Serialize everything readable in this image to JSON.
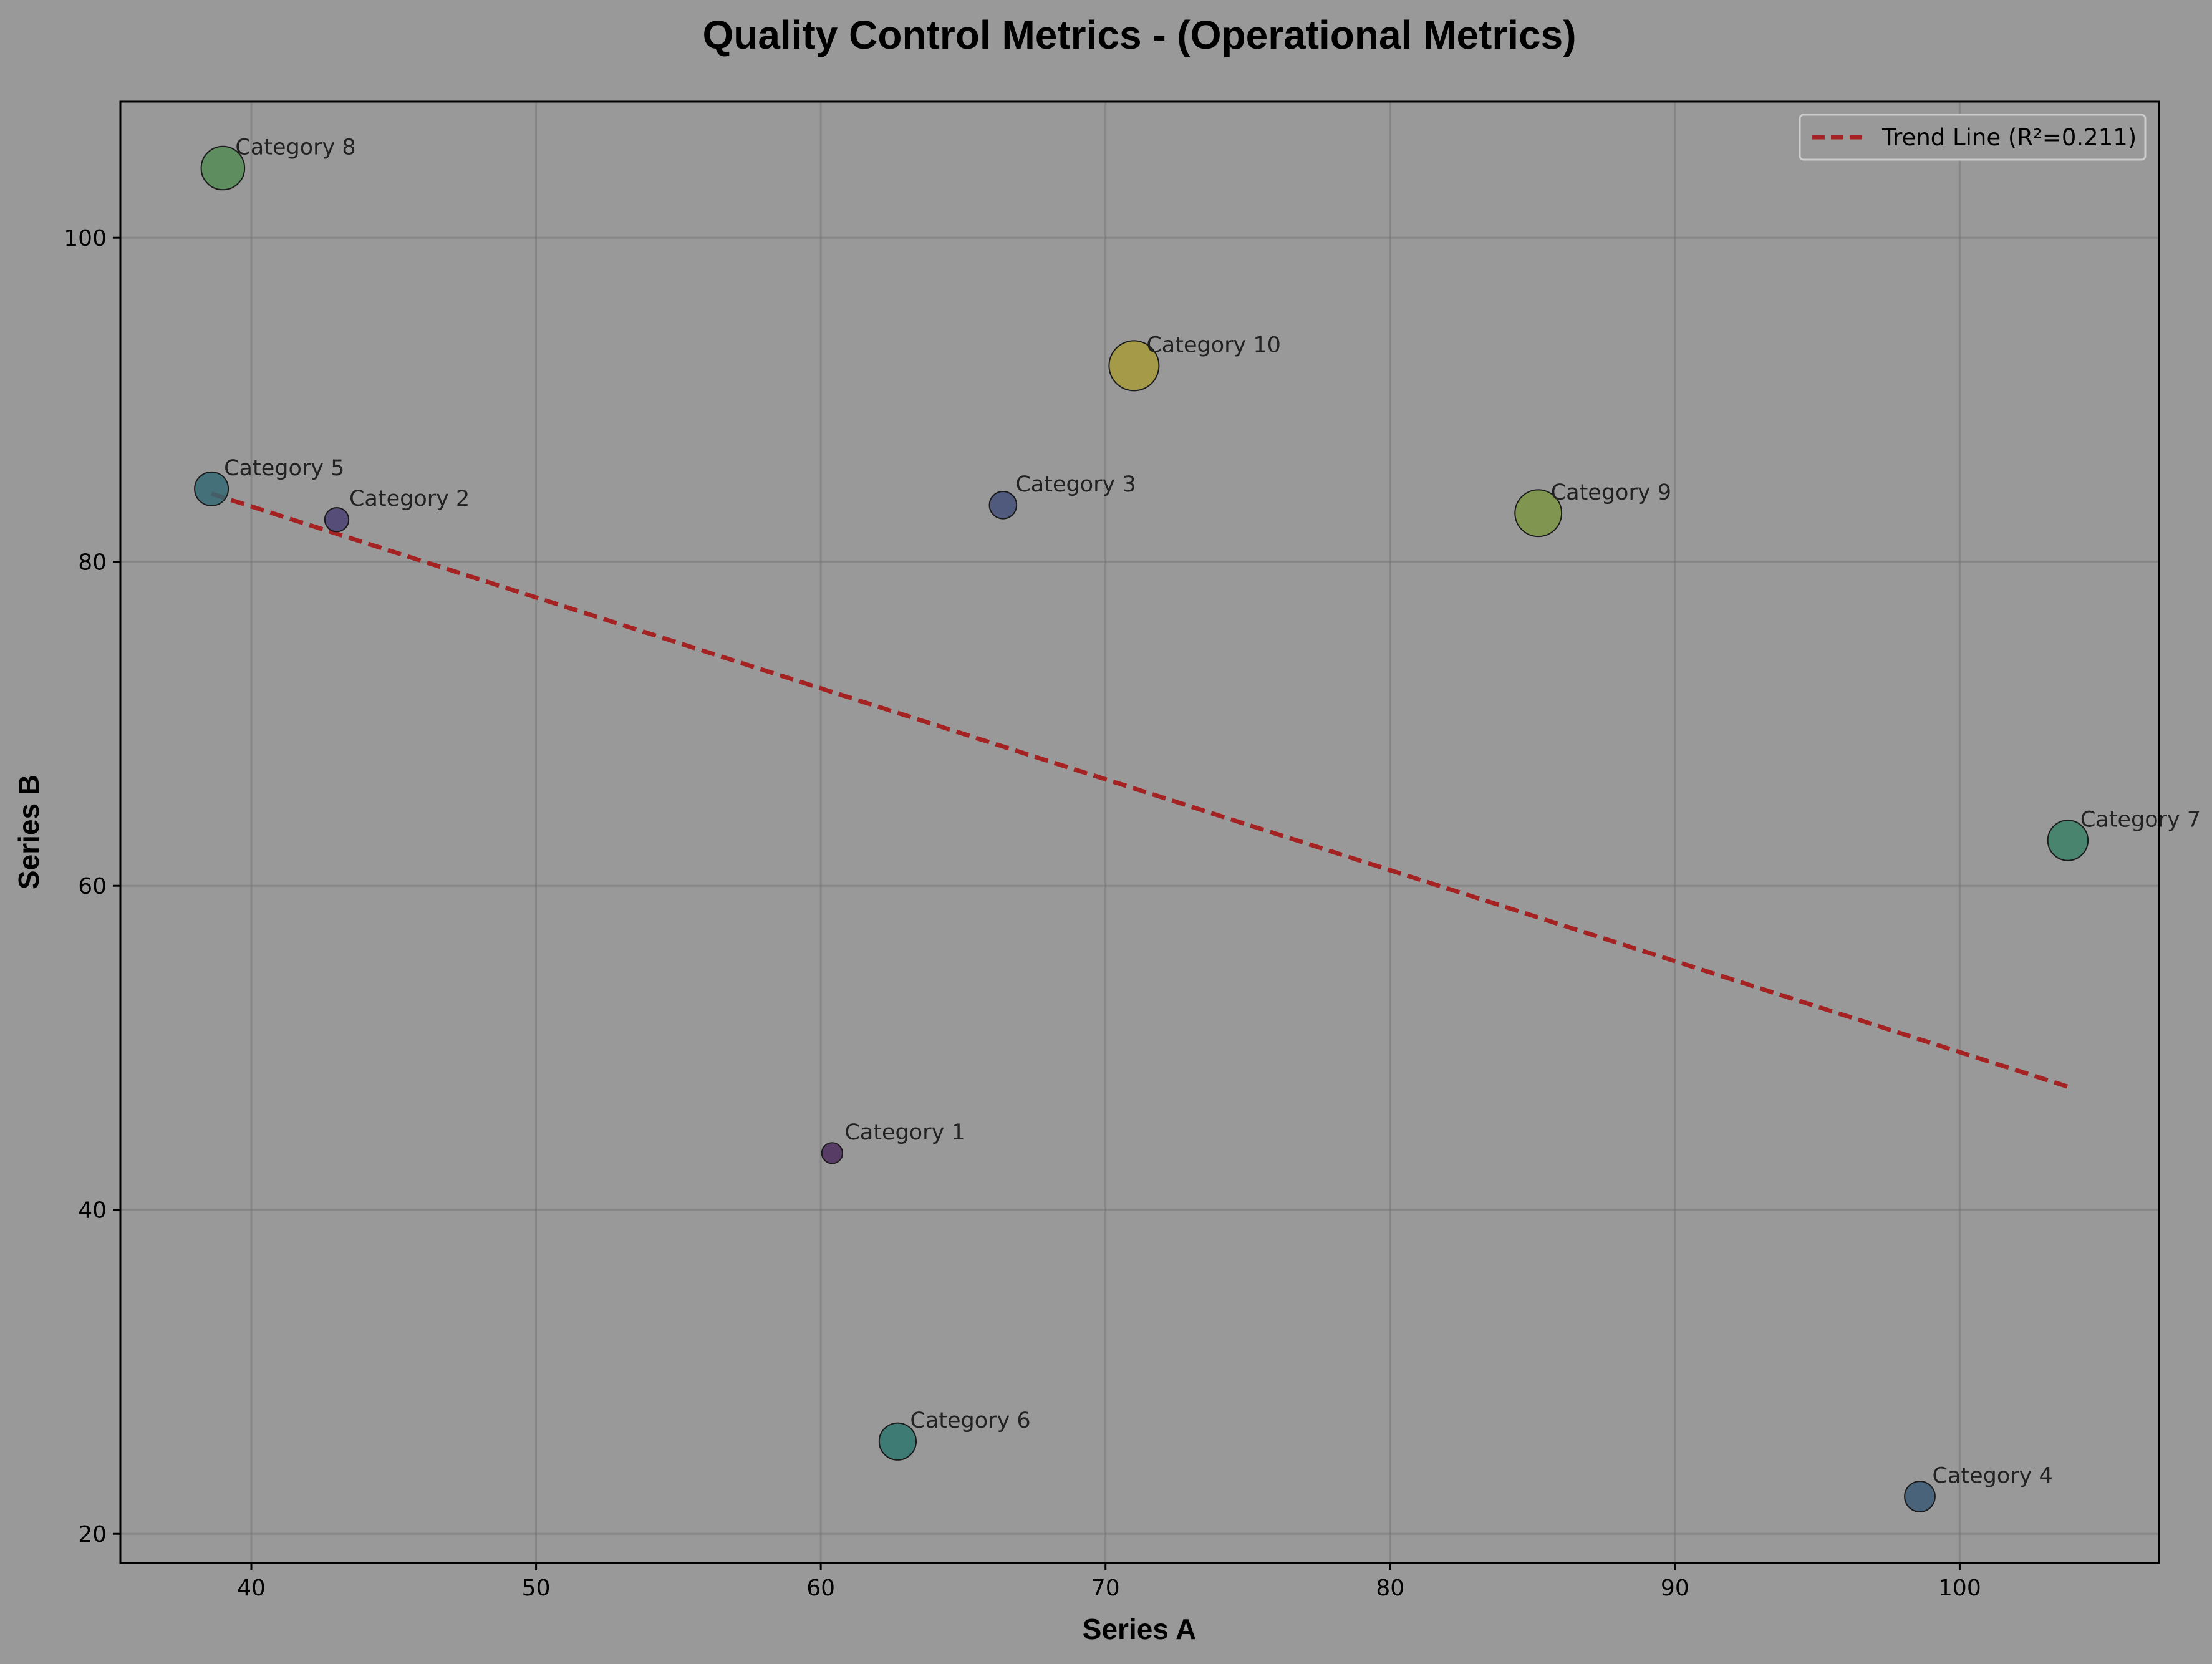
{
  "chart_data": {
    "type": "scatter",
    "title": "Quality Control Metrics - (Operational Metrics)",
    "xlabel": "Series A",
    "ylabel": "Series B",
    "xlim": [
      35.4,
      107.0
    ],
    "ylim": [
      18.2,
      108.4
    ],
    "xticks": [
      40,
      50,
      60,
      70,
      80,
      90,
      100
    ],
    "yticks": [
      20,
      40,
      60,
      80,
      100
    ],
    "grid": true,
    "legend_position": "top-right",
    "points": [
      {
        "label": "Category 1",
        "x": 60.4,
        "y": 43.5,
        "size": 1,
        "color": "#4b2d5c"
      },
      {
        "label": "Category 2",
        "x": 43.0,
        "y": 82.6,
        "size": 2,
        "color": "#4a3f72"
      },
      {
        "label": "Category 3",
        "x": 66.4,
        "y": 83.5,
        "size": 3,
        "color": "#434f78"
      },
      {
        "label": "Category 4",
        "x": 98.6,
        "y": 22.3,
        "size": 4,
        "color": "#3b5a74"
      },
      {
        "label": "Category 5",
        "x": 38.6,
        "y": 84.5,
        "size": 5,
        "color": "#356873"
      },
      {
        "label": "Category 6",
        "x": 62.7,
        "y": 25.7,
        "size": 6,
        "color": "#2f756f"
      },
      {
        "label": "Category 7",
        "x": 103.8,
        "y": 62.8,
        "size": 7,
        "color": "#3b8067"
      },
      {
        "label": "Category 8",
        "x": 39.0,
        "y": 104.3,
        "size": 8,
        "color": "#538c55"
      },
      {
        "label": "Category 9",
        "x": 85.2,
        "y": 83.0,
        "size": 9,
        "color": "#7b9442"
      },
      {
        "label": "Category 10",
        "x": 71.0,
        "y": 92.1,
        "size": 10,
        "color": "#a69a3a"
      }
    ],
    "trend_line": {
      "label": "Trend Line (R²=0.211)",
      "color": "#a52222",
      "x": [
        38.6,
        103.8
      ],
      "y": [
        84.2,
        47.6
      ]
    }
  }
}
